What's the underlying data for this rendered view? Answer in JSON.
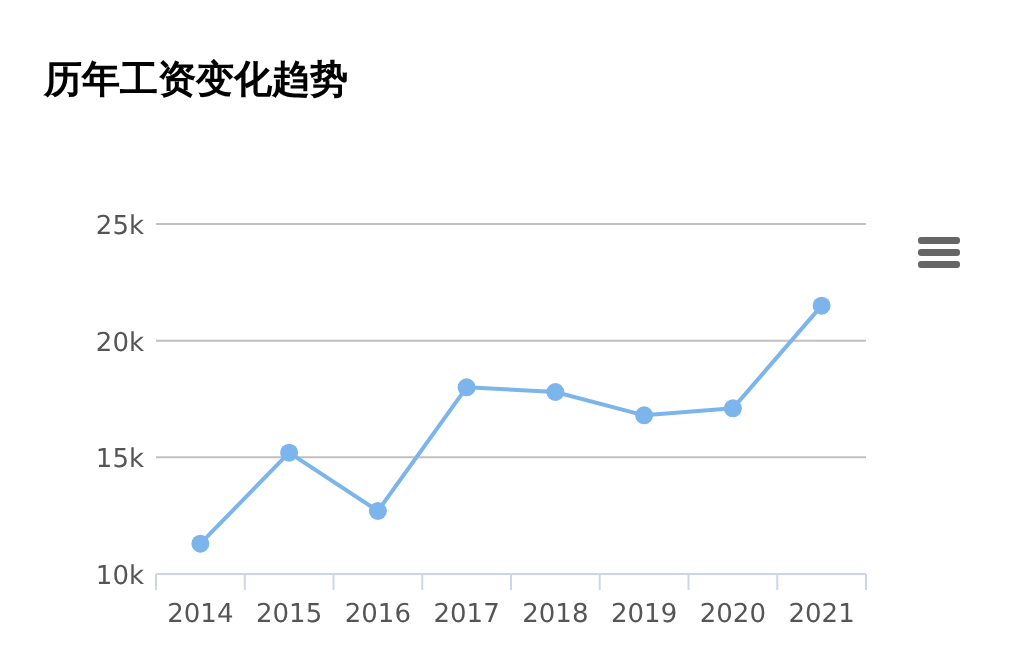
{
  "chart_data": {
    "type": "line",
    "title": "历年工资变化趋势",
    "categories": [
      "2014",
      "2015",
      "2016",
      "2017",
      "2018",
      "2019",
      "2020",
      "2021"
    ],
    "series": [
      {
        "color": "#7cb5ec",
        "values": [
          11300,
          15200,
          12700,
          18000,
          17800,
          16800,
          17100,
          21500
        ]
      }
    ],
    "ylim": [
      10000,
      25000
    ],
    "yticks": [
      {
        "value": 10000,
        "label": "10k"
      },
      {
        "value": 15000,
        "label": "15k"
      },
      {
        "value": 20000,
        "label": "20k"
      },
      {
        "value": 25000,
        "label": "25k"
      }
    ],
    "grid": "y",
    "marker": "circle",
    "line_style": "solid"
  }
}
